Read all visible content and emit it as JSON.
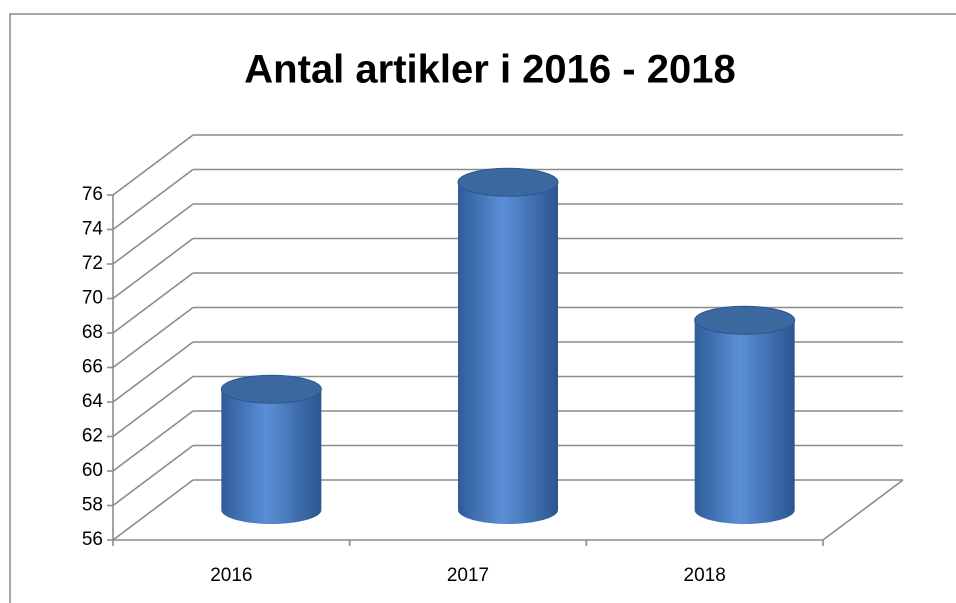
{
  "chart_data": {
    "type": "bar3d",
    "title": "Antal artikler i 2016 - 2018",
    "categories": [
      "2016",
      "2017",
      "2018"
    ],
    "values": [
      63,
      75,
      67
    ],
    "color": "#4a7ebb",
    "ylim": [
      56,
      76
    ],
    "yticks": [
      56,
      58,
      60,
      62,
      64,
      66,
      68,
      70,
      72,
      74,
      76
    ],
    "grid": true
  }
}
